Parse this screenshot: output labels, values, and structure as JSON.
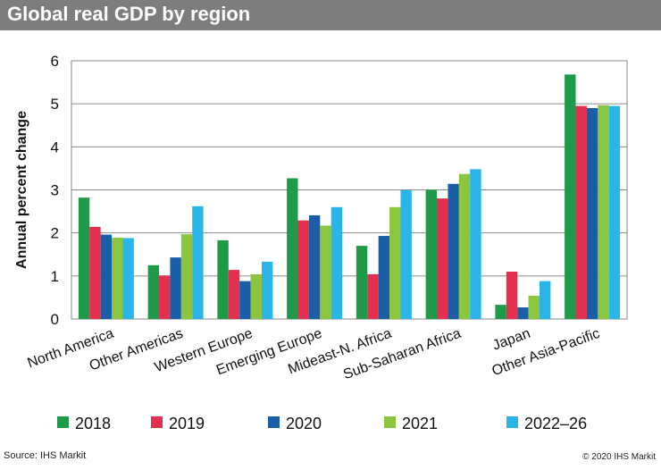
{
  "header": {
    "title": "Global real GDP by region"
  },
  "footer": {
    "source": "Source: IHS Markit",
    "copyright": "© 2020 IHS Markit"
  },
  "chart_data": {
    "type": "bar",
    "title": "Global real GDP by region",
    "ylabel": "Annual percent change",
    "xlabel": "",
    "ylim": [
      0,
      6
    ],
    "yticks": [
      0,
      1,
      2,
      3,
      4,
      5,
      6
    ],
    "grid": true,
    "legend_position": "bottom",
    "categories": [
      "North America",
      "Other Americas",
      "Western Europe",
      "Emerging Europe",
      "Mideast-N. Africa",
      "Sub-Saharan Africa",
      "Japan",
      "Other Asia-Pacific"
    ],
    "series": [
      {
        "name": "2018",
        "color": "#1f9a48",
        "values": [
          2.82,
          1.25,
          1.83,
          3.27,
          1.7,
          3.0,
          0.33,
          5.68
        ]
      },
      {
        "name": "2019",
        "color": "#e3304f",
        "values": [
          2.14,
          1.01,
          1.14,
          2.29,
          1.04,
          2.8,
          1.1,
          4.95
        ]
      },
      {
        "name": "2020",
        "color": "#1a5ea8",
        "values": [
          1.96,
          1.43,
          0.88,
          2.41,
          1.93,
          3.14,
          0.27,
          4.9
        ]
      },
      {
        "name": "2021",
        "color": "#8cc63f",
        "values": [
          1.89,
          1.97,
          1.04,
          2.17,
          2.6,
          3.37,
          0.54,
          4.97
        ]
      },
      {
        "name": "2022–26",
        "color": "#29b5e8",
        "values": [
          1.88,
          2.62,
          1.33,
          2.6,
          2.99,
          3.48,
          0.88,
          4.95
        ]
      }
    ]
  }
}
